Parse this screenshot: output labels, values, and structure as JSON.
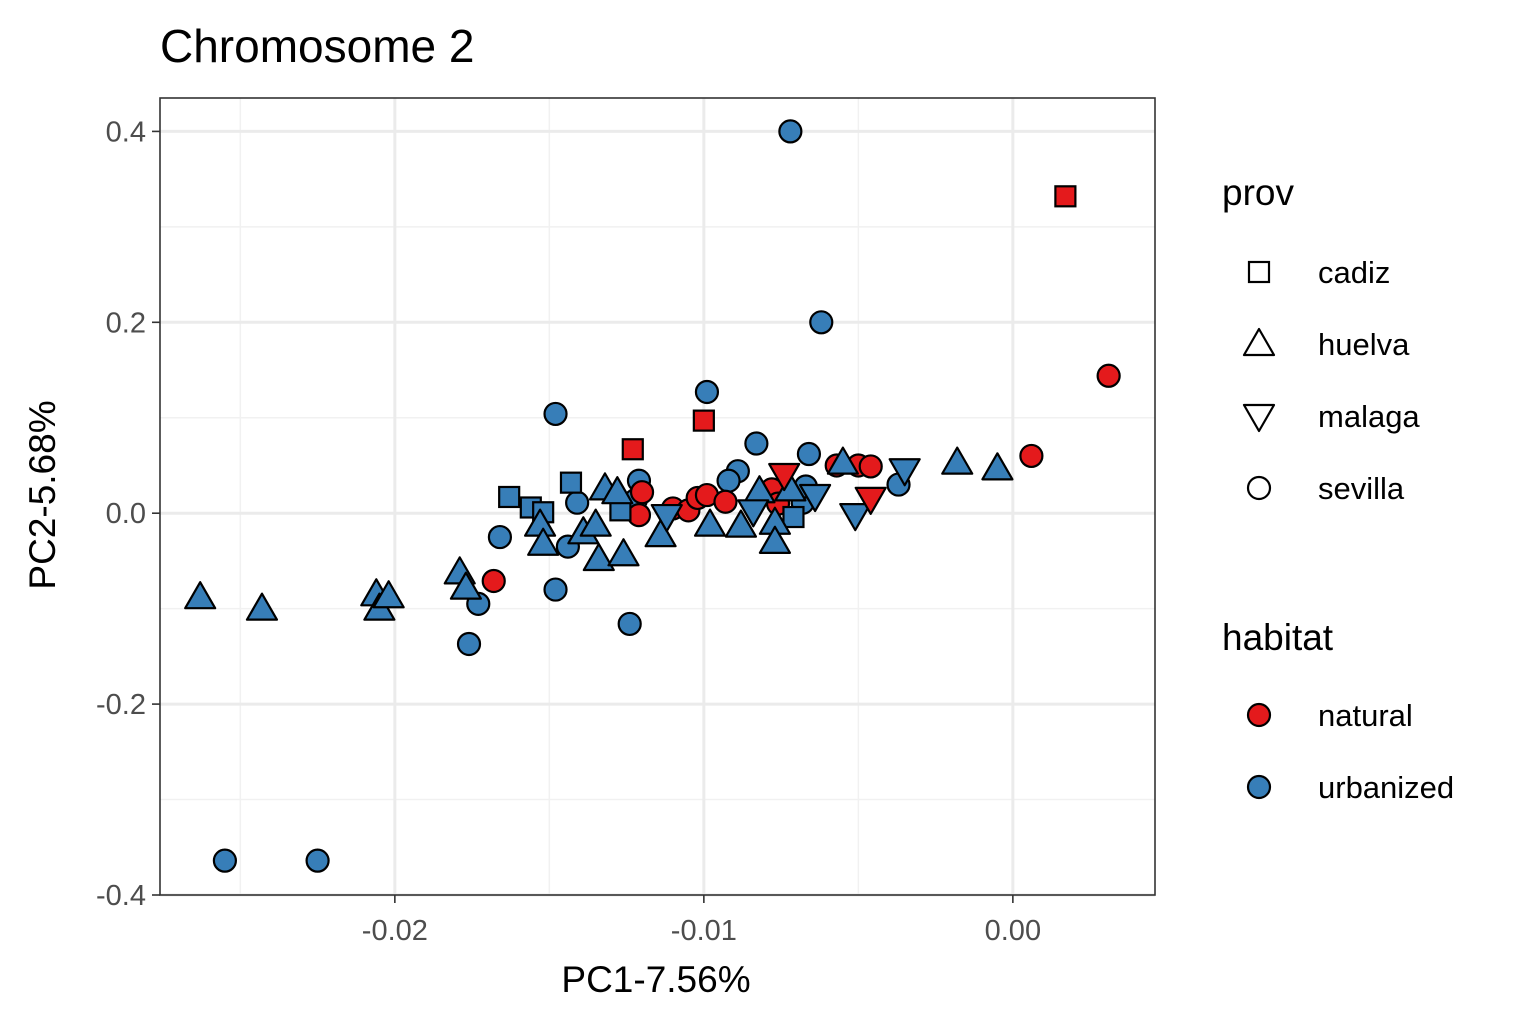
{
  "chart_data": {
    "type": "scatter",
    "title": "Chromosome 2",
    "xlabel": "PC1-7.56%",
    "ylabel": "PC2-5.68%",
    "xlim": [
      -0.0276,
      0.0046
    ],
    "ylim": [
      -0.4,
      0.435
    ],
    "x_ticks": [
      -0.02,
      -0.01,
      0.0
    ],
    "x_tick_labels": [
      "-0.02",
      "-0.01",
      "0.00"
    ],
    "y_ticks": [
      -0.4,
      -0.2,
      0.0,
      0.2,
      0.4
    ],
    "y_tick_labels": [
      "-0.4",
      "-0.2",
      "0.0",
      "0.2",
      "0.4"
    ],
    "grid": true,
    "legend_position": "right",
    "colors": {
      "natural": "#E41A1C",
      "urbanized": "#377EB8"
    },
    "legend": {
      "shape_title": "prov",
      "shape_items": [
        {
          "label": "cadiz",
          "shape": "square"
        },
        {
          "label": "huelva",
          "shape": "triangle-up"
        },
        {
          "label": "malaga",
          "shape": "triangle-down"
        },
        {
          "label": "sevilla",
          "shape": "circle"
        }
      ],
      "color_title": "habitat",
      "color_items": [
        {
          "label": "natural",
          "color": "#E41A1C"
        },
        {
          "label": "urbanized",
          "color": "#377EB8"
        }
      ]
    },
    "points": [
      {
        "x": 0.0017,
        "y": 0.332,
        "prov": "cadiz",
        "habitat": "natural"
      },
      {
        "x": 0.0031,
        "y": 0.144,
        "prov": "sevilla",
        "habitat": "natural"
      },
      {
        "x": 0.0006,
        "y": 0.06,
        "prov": "sevilla",
        "habitat": "natural"
      },
      {
        "x": -0.0072,
        "y": 0.4,
        "prov": "sevilla",
        "habitat": "urbanized"
      },
      {
        "x": -0.0062,
        "y": 0.2,
        "prov": "sevilla",
        "habitat": "urbanized"
      },
      {
        "x": -0.0099,
        "y": 0.127,
        "prov": "sevilla",
        "habitat": "urbanized"
      },
      {
        "x": -0.0148,
        "y": 0.104,
        "prov": "sevilla",
        "habitat": "urbanized"
      },
      {
        "x": -0.0083,
        "y": 0.073,
        "prov": "sevilla",
        "habitat": "urbanized"
      },
      {
        "x": -0.0066,
        "y": 0.062,
        "prov": "sevilla",
        "habitat": "urbanized"
      },
      {
        "x": -0.0089,
        "y": 0.044,
        "prov": "sevilla",
        "habitat": "urbanized"
      },
      {
        "x": -0.0092,
        "y": 0.034,
        "prov": "sevilla",
        "habitat": "urbanized"
      },
      {
        "x": -0.0037,
        "y": 0.03,
        "prov": "sevilla",
        "habitat": "urbanized"
      },
      {
        "x": -0.0121,
        "y": 0.034,
        "prov": "sevilla",
        "habitat": "urbanized"
      },
      {
        "x": -0.0122,
        "y": 0.014,
        "prov": "sevilla",
        "habitat": "urbanized"
      },
      {
        "x": -0.0141,
        "y": 0.011,
        "prov": "sevilla",
        "habitat": "urbanized"
      },
      {
        "x": -0.0166,
        "y": -0.025,
        "prov": "sevilla",
        "habitat": "urbanized"
      },
      {
        "x": -0.0144,
        "y": -0.035,
        "prov": "sevilla",
        "habitat": "urbanized"
      },
      {
        "x": -0.0148,
        "y": -0.08,
        "prov": "sevilla",
        "habitat": "urbanized"
      },
      {
        "x": -0.0173,
        "y": -0.095,
        "prov": "sevilla",
        "habitat": "urbanized"
      },
      {
        "x": -0.0176,
        "y": -0.137,
        "prov": "sevilla",
        "habitat": "urbanized"
      },
      {
        "x": -0.0124,
        "y": -0.116,
        "prov": "sevilla",
        "habitat": "urbanized"
      },
      {
        "x": -0.0255,
        "y": -0.364,
        "prov": "sevilla",
        "habitat": "urbanized"
      },
      {
        "x": -0.0225,
        "y": -0.364,
        "prov": "sevilla",
        "habitat": "urbanized"
      },
      {
        "x": -0.0068,
        "y": 0.011,
        "prov": "sevilla",
        "habitat": "urbanized"
      },
      {
        "x": -0.0067,
        "y": 0.028,
        "prov": "sevilla",
        "habitat": "urbanized"
      },
      {
        "x": -0.0168,
        "y": -0.071,
        "prov": "sevilla",
        "habitat": "natural"
      },
      {
        "x": -0.0121,
        "y": -0.002,
        "prov": "sevilla",
        "habitat": "natural"
      },
      {
        "x": -0.012,
        "y": 0.022,
        "prov": "sevilla",
        "habitat": "natural"
      },
      {
        "x": -0.011,
        "y": 0.005,
        "prov": "sevilla",
        "habitat": "natural"
      },
      {
        "x": -0.0105,
        "y": 0.003,
        "prov": "sevilla",
        "habitat": "natural"
      },
      {
        "x": -0.0102,
        "y": 0.016,
        "prov": "sevilla",
        "habitat": "natural"
      },
      {
        "x": -0.0099,
        "y": 0.019,
        "prov": "sevilla",
        "habitat": "natural"
      },
      {
        "x": -0.0093,
        "y": 0.012,
        "prov": "sevilla",
        "habitat": "natural"
      },
      {
        "x": -0.0078,
        "y": 0.025,
        "prov": "sevilla",
        "habitat": "natural"
      },
      {
        "x": -0.0076,
        "y": 0.01,
        "prov": "sevilla",
        "habitat": "natural"
      },
      {
        "x": -0.0057,
        "y": 0.05,
        "prov": "sevilla",
        "habitat": "natural"
      },
      {
        "x": -0.005,
        "y": 0.05,
        "prov": "sevilla",
        "habitat": "natural"
      },
      {
        "x": -0.0046,
        "y": 0.049,
        "prov": "sevilla",
        "habitat": "natural"
      },
      {
        "x": -0.0123,
        "y": 0.067,
        "prov": "cadiz",
        "habitat": "natural"
      },
      {
        "x": -0.01,
        "y": 0.097,
        "prov": "cadiz",
        "habitat": "natural"
      },
      {
        "x": -0.0143,
        "y": 0.032,
        "prov": "cadiz",
        "habitat": "urbanized"
      },
      {
        "x": -0.0163,
        "y": 0.017,
        "prov": "cadiz",
        "habitat": "urbanized"
      },
      {
        "x": -0.0156,
        "y": 0.006,
        "prov": "cadiz",
        "habitat": "urbanized"
      },
      {
        "x": -0.0152,
        "y": 0.001,
        "prov": "cadiz",
        "habitat": "urbanized"
      },
      {
        "x": -0.0127,
        "y": 0.003,
        "prov": "cadiz",
        "habitat": "urbanized"
      },
      {
        "x": -0.0071,
        "y": -0.004,
        "prov": "cadiz",
        "habitat": "urbanized"
      },
      {
        "x": -0.0263,
        "y": -0.088,
        "prov": "huelva",
        "habitat": "urbanized"
      },
      {
        "x": -0.0243,
        "y": -0.1,
        "prov": "huelva",
        "habitat": "urbanized"
      },
      {
        "x": -0.0206,
        "y": -0.085,
        "prov": "huelva",
        "habitat": "urbanized"
      },
      {
        "x": -0.0205,
        "y": -0.1,
        "prov": "huelva",
        "habitat": "urbanized"
      },
      {
        "x": -0.0202,
        "y": -0.087,
        "prov": "huelva",
        "habitat": "urbanized"
      },
      {
        "x": -0.0179,
        "y": -0.062,
        "prov": "huelva",
        "habitat": "urbanized"
      },
      {
        "x": -0.0177,
        "y": -0.078,
        "prov": "huelva",
        "habitat": "urbanized"
      },
      {
        "x": -0.0153,
        "y": -0.012,
        "prov": "huelva",
        "habitat": "urbanized"
      },
      {
        "x": -0.0152,
        "y": -0.032,
        "prov": "huelva",
        "habitat": "urbanized"
      },
      {
        "x": -0.0139,
        "y": -0.02,
        "prov": "huelva",
        "habitat": "urbanized"
      },
      {
        "x": -0.0135,
        "y": -0.012,
        "prov": "huelva",
        "habitat": "urbanized"
      },
      {
        "x": -0.0132,
        "y": 0.026,
        "prov": "huelva",
        "habitat": "urbanized"
      },
      {
        "x": -0.0128,
        "y": 0.022,
        "prov": "huelva",
        "habitat": "urbanized"
      },
      {
        "x": -0.0134,
        "y": -0.048,
        "prov": "huelva",
        "habitat": "urbanized"
      },
      {
        "x": -0.0126,
        "y": -0.043,
        "prov": "huelva",
        "habitat": "urbanized"
      },
      {
        "x": -0.0114,
        "y": -0.023,
        "prov": "huelva",
        "habitat": "urbanized"
      },
      {
        "x": -0.0088,
        "y": -0.013,
        "prov": "huelva",
        "habitat": "urbanized"
      },
      {
        "x": -0.0098,
        "y": -0.012,
        "prov": "huelva",
        "habitat": "urbanized"
      },
      {
        "x": -0.0077,
        "y": -0.01,
        "prov": "huelva",
        "habitat": "urbanized"
      },
      {
        "x": -0.0077,
        "y": -0.03,
        "prov": "huelva",
        "habitat": "urbanized"
      },
      {
        "x": -0.0082,
        "y": 0.023,
        "prov": "huelva",
        "habitat": "urbanized"
      },
      {
        "x": -0.0072,
        "y": 0.025,
        "prov": "huelva",
        "habitat": "urbanized"
      },
      {
        "x": -0.0055,
        "y": 0.053,
        "prov": "huelva",
        "habitat": "urbanized"
      },
      {
        "x": -0.0018,
        "y": 0.053,
        "prov": "huelva",
        "habitat": "urbanized"
      },
      {
        "x": -0.0005,
        "y": 0.047,
        "prov": "huelva",
        "habitat": "urbanized"
      },
      {
        "x": -0.0035,
        "y": 0.045,
        "prov": "malaga",
        "habitat": "urbanized"
      },
      {
        "x": -0.0051,
        "y": -0.002,
        "prov": "malaga",
        "habitat": "urbanized"
      },
      {
        "x": -0.0064,
        "y": 0.018,
        "prov": "malaga",
        "habitat": "urbanized"
      },
      {
        "x": -0.0084,
        "y": 0.002,
        "prov": "malaga",
        "habitat": "urbanized"
      },
      {
        "x": -0.0112,
        "y": -0.003,
        "prov": "malaga",
        "habitat": "urbanized"
      },
      {
        "x": -0.0074,
        "y": 0.04,
        "prov": "malaga",
        "habitat": "natural"
      },
      {
        "x": -0.0046,
        "y": 0.015,
        "prov": "malaga",
        "habitat": "natural"
      }
    ]
  }
}
